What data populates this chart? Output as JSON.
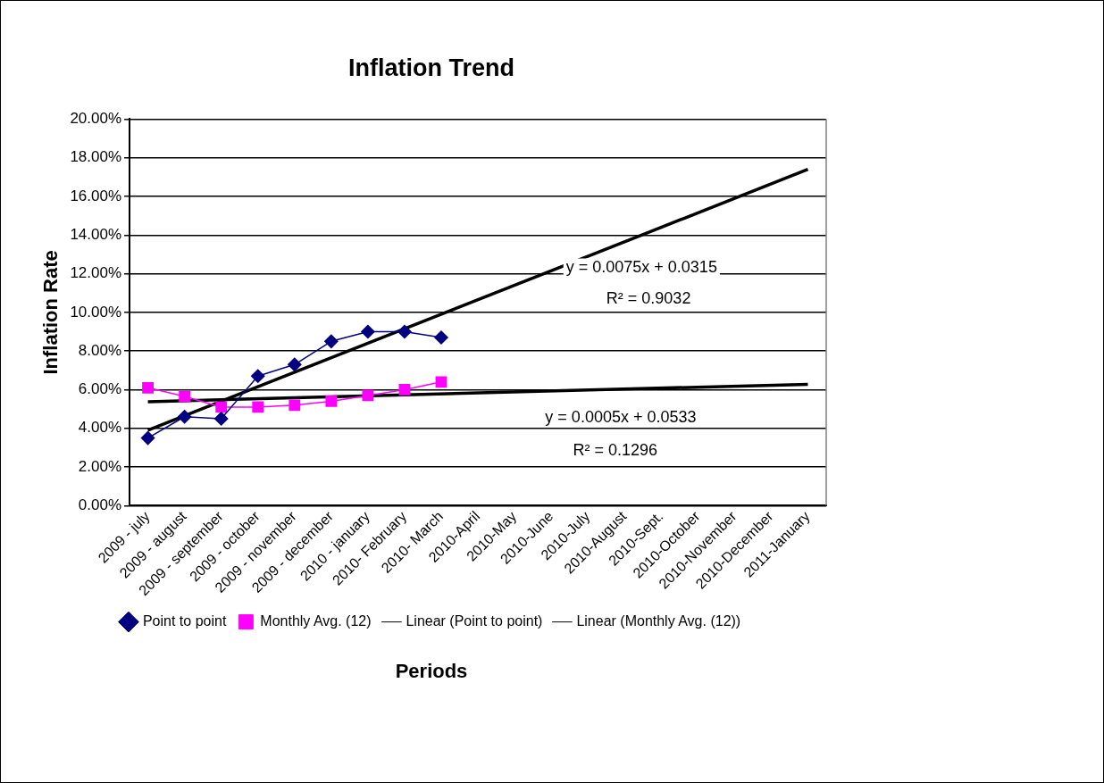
{
  "chart_data": {
    "type": "line",
    "title": "Inflation Trend",
    "xlabel": "Periods",
    "ylabel": "Inflation Rate",
    "categories": [
      "2009 - july",
      "2009 - august",
      "2009 - september",
      "2009 - october",
      "2009 - november",
      "2009 - december",
      "2010 - january",
      "2010- February",
      "2010- March",
      "2010-April",
      "2010-May",
      "2010-June",
      "2010-July",
      "2010-August",
      "2010-Sept.",
      "2010-October",
      "2010-November",
      "2010-December",
      "2011-January"
    ],
    "series": [
      {
        "name": "Point to point",
        "color": "#000080",
        "marker": "diamond",
        "values": [
          3.5,
          4.6,
          4.5,
          6.7,
          7.3,
          8.5,
          9.0,
          9.0,
          8.7,
          null,
          null,
          null,
          null,
          null,
          null,
          null,
          null,
          null,
          null
        ]
      },
      {
        "name": "Monthly Avg. (12)",
        "color": "#ff00ff",
        "marker": "square",
        "values": [
          6.1,
          5.65,
          5.1,
          5.1,
          5.2,
          5.4,
          5.7,
          6.0,
          6.4,
          null,
          null,
          null,
          null,
          null,
          null,
          null,
          null,
          null,
          null
        ]
      },
      {
        "name": "Linear (Point to point)",
        "color": "#000000",
        "marker": "none",
        "x": [
          "2009 - july",
          "2011-January"
        ],
        "values": [
          3.9,
          17.4
        ]
      },
      {
        "name": "Linear (Monthly Avg. (12))",
        "color": "#000000",
        "marker": "none",
        "x": [
          "2009 - july",
          "2011-January"
        ],
        "values": [
          5.38,
          6.28
        ]
      }
    ],
    "ylim": [
      0,
      20
    ],
    "yticks": [
      {
        "value": 0,
        "label": "0.00%"
      },
      {
        "value": 2,
        "label": "2.00%"
      },
      {
        "value": 4,
        "label": "4.00%"
      },
      {
        "value": 6,
        "label": "6.00%"
      },
      {
        "value": 8,
        "label": "8.00%"
      },
      {
        "value": 10,
        "label": "10.00%"
      },
      {
        "value": 12,
        "label": "12.00%"
      },
      {
        "value": 14,
        "label": "14.00%"
      },
      {
        "value": 16,
        "label": "16.00%"
      },
      {
        "value": 18,
        "label": "18.00%"
      },
      {
        "value": 20,
        "label": "20.00%"
      }
    ],
    "grid": "y",
    "legend": "bottom",
    "annotations": [
      "y = 0.0075x + 0.0315",
      "R² = 0.9032",
      "y = 0.0005x + 0.0533",
      "R² = 0.1296"
    ]
  }
}
